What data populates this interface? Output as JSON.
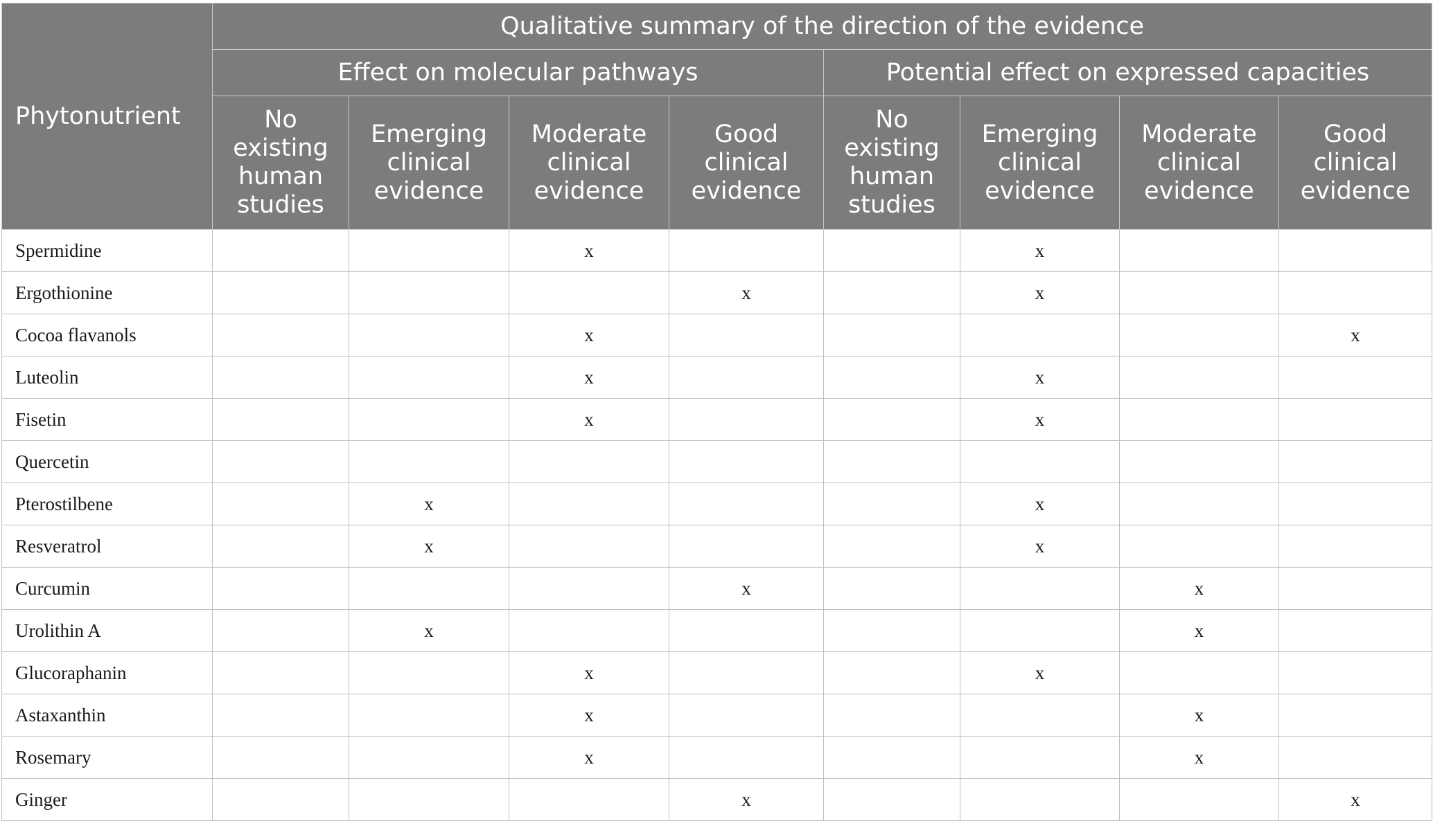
{
  "header": {
    "row_label": "Phytonutrient",
    "summary": "Qualitative summary of the direction of the evidence",
    "groups": [
      "Effect on molecular pathways",
      "Potential effect on expressed capacities"
    ],
    "subcolumns": [
      "No existing human studies",
      "Emerging clinical evidence",
      "Moderate clinical evidence",
      "Good clinical evidence",
      "No existing human studies",
      "Emerging clinical evidence",
      "Moderate clinical evidence",
      "Good clinical evidence"
    ]
  },
  "rows": [
    {
      "name": "Spermidine",
      "cells": [
        "",
        "",
        "x",
        "",
        "",
        "x",
        "",
        ""
      ]
    },
    {
      "name": "Ergothionine",
      "cells": [
        "",
        "",
        "",
        "x",
        "",
        "x",
        "",
        ""
      ]
    },
    {
      "name": "Cocoa flavanols",
      "cells": [
        "",
        "",
        "x",
        "",
        "",
        "",
        "",
        "x"
      ]
    },
    {
      "name": "Luteolin",
      "cells": [
        "",
        "",
        "x",
        "",
        "",
        "x",
        "",
        ""
      ]
    },
    {
      "name": "Fisetin",
      "cells": [
        "",
        "",
        "x",
        "",
        "",
        "x",
        "",
        ""
      ]
    },
    {
      "name": "Quercetin",
      "cells": [
        "",
        "",
        "",
        "",
        "",
        "",
        "",
        ""
      ]
    },
    {
      "name": "Pterostilbene",
      "cells": [
        "",
        "x",
        "",
        "",
        "",
        "x",
        "",
        ""
      ]
    },
    {
      "name": "Resveratrol",
      "cells": [
        "",
        "x",
        "",
        "",
        "",
        "x",
        "",
        ""
      ]
    },
    {
      "name": "Curcumin",
      "cells": [
        "",
        "",
        "",
        "x",
        "",
        "",
        "x",
        ""
      ]
    },
    {
      "name": "Urolithin A",
      "cells": [
        "",
        "x",
        "",
        "",
        "",
        "",
        "x",
        ""
      ]
    },
    {
      "name": "Glucoraphanin",
      "cells": [
        "",
        "",
        "x",
        "",
        "",
        "x",
        "",
        ""
      ]
    },
    {
      "name": "Astaxanthin",
      "cells": [
        "",
        "",
        "x",
        "",
        "",
        "",
        "x",
        ""
      ]
    },
    {
      "name": "Rosemary",
      "cells": [
        "",
        "",
        "x",
        "",
        "",
        "",
        "x",
        ""
      ]
    },
    {
      "name": "Ginger",
      "cells": [
        "",
        "",
        "",
        "x",
        "",
        "",
        "",
        "x"
      ]
    }
  ]
}
